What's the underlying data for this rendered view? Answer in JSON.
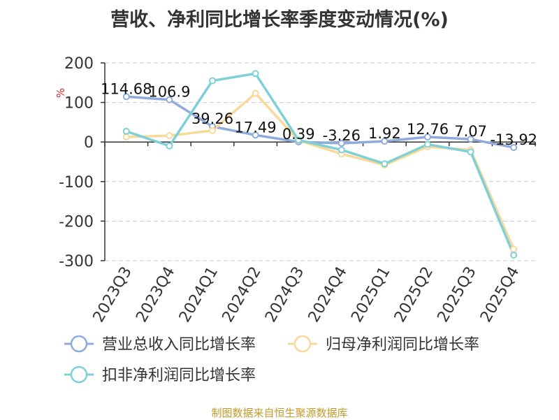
{
  "chart_data": {
    "type": "line",
    "title": "营收、净利同比增长率季度变动情况(%)",
    "ylabel": "%",
    "categories": [
      "2023Q3",
      "2023Q4",
      "2024Q1",
      "2024Q2",
      "2024Q3",
      "2024Q4",
      "2025Q1",
      "2025Q2",
      "2025Q3",
      "2025Q4"
    ],
    "ylim": [
      -300,
      200
    ],
    "yticks": [
      200,
      100,
      0,
      -100,
      -200,
      -300
    ],
    "grid": true,
    "legend_position": "bottom",
    "series": [
      {
        "name": "营业总收入同比增长率",
        "color": "#8faadc",
        "values": [
          114.68,
          106.9,
          39.26,
          17.49,
          0.39,
          -3.26,
          1.92,
          12.76,
          7.07,
          -13.92
        ],
        "labels": [
          "114.68",
          "106.9",
          "39.26",
          "17.49",
          "0.39",
          "-3.26",
          "1.92",
          "12.76",
          "7.07",
          "-13.92"
        ]
      },
      {
        "name": "归母净利润同比增长率",
        "color": "#f9d99a",
        "values": [
          13,
          16,
          29,
          123,
          4,
          -30,
          -58,
          -12,
          -20,
          -271
        ]
      },
      {
        "name": "扣非净利润同比增长率",
        "color": "#7fd0d6",
        "values": [
          27,
          -10,
          155,
          173,
          5,
          -20,
          -55,
          -6,
          -25,
          -286
        ]
      }
    ]
  },
  "source": "制图数据来自恒生聚源数据库"
}
